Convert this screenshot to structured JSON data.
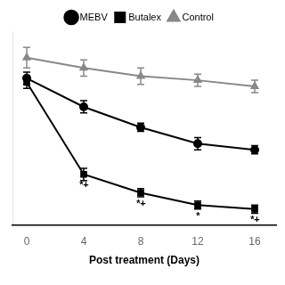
{
  "chart_data": {
    "type": "line",
    "x": [
      0,
      4,
      8,
      12,
      16
    ],
    "series": [
      {
        "name": "MEBV",
        "color": "#000000",
        "marker": "circle",
        "values": [
          72,
          58,
          48,
          40,
          37
        ],
        "errors": [
          3,
          3,
          2,
          3,
          2
        ]
      },
      {
        "name": "Butalex",
        "color": "#000000",
        "marker": "square",
        "values": [
          70,
          25,
          16,
          10,
          8
        ],
        "errors": [
          3,
          3,
          2,
          2,
          2
        ]
      },
      {
        "name": "Control",
        "color": "#888888",
        "marker": "triangle",
        "values": [
          82,
          77,
          73,
          71,
          68
        ],
        "errors": [
          5,
          4,
          4,
          3,
          3
        ]
      }
    ],
    "annotations": [
      {
        "x": 4,
        "y": 22,
        "text": "*+"
      },
      {
        "x": 8,
        "y": 13,
        "text": "*+"
      },
      {
        "x": 12,
        "y": 7,
        "text": "*"
      },
      {
        "x": 16,
        "y": 5,
        "text": "*+"
      }
    ],
    "xlabel": "Post treatment (Days)",
    "xlim": [
      -1,
      17.5
    ],
    "xticks": [
      0,
      4,
      8,
      12,
      16
    ],
    "ylim": [
      0,
      95
    ],
    "tick_labels": "x",
    "grid": false,
    "legend": "top"
  }
}
